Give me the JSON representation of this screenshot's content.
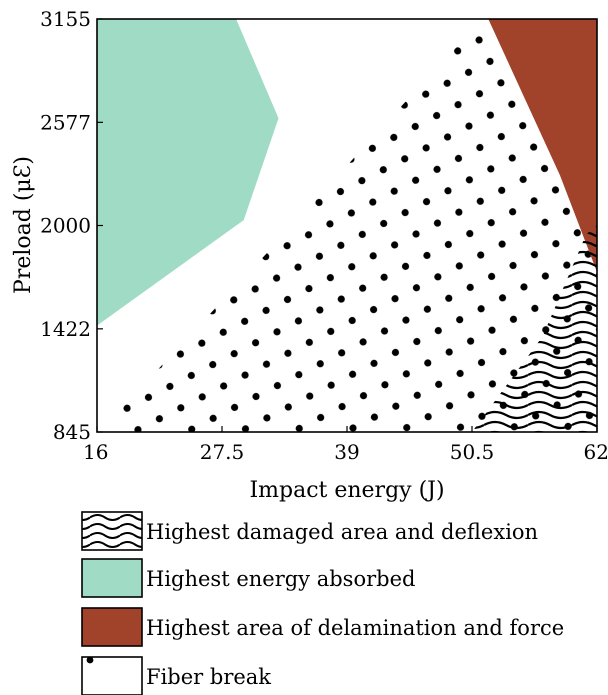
{
  "chart_data": {
    "type": "region-map",
    "xlabel": "Impact energy (J)",
    "ylabel": "Preload (μƐ)",
    "xlim": [
      16,
      62
    ],
    "ylim": [
      845,
      3155
    ],
    "xticks": [
      "16",
      "27.5",
      "39",
      "50.5",
      "62"
    ],
    "yticks": [
      "845",
      "1422",
      "2000",
      "2577",
      "3155"
    ],
    "xtick_values": [
      16,
      27.5,
      39,
      50.5,
      62
    ],
    "ytick_values": [
      845,
      1422,
      2000,
      2577,
      3155
    ],
    "grid": false,
    "legend_position": "bottom",
    "series": [
      {
        "name": "Highest damaged area and deflexion",
        "pattern": "wavy-lines",
        "color": "#000000",
        "region": [
          [
            50.5,
            845
          ],
          [
            57,
            1380
          ],
          [
            61,
            1950
          ],
          [
            62,
            2000
          ],
          [
            62,
            845
          ]
        ]
      },
      {
        "name": "Highest energy absorbed",
        "pattern": "solid",
        "color": "#9fdbc5",
        "region": [
          [
            16,
            3155
          ],
          [
            28.8,
            3155
          ],
          [
            32.7,
            2600
          ],
          [
            29.5,
            2030
          ],
          [
            16,
            1440
          ]
        ]
      },
      {
        "name": "Highest area of delamination and force",
        "pattern": "solid",
        "color": "#a1422a",
        "region": [
          [
            52,
            3155
          ],
          [
            62,
            3155
          ],
          [
            62,
            1740
          ],
          [
            58.6,
            2280
          ]
        ]
      },
      {
        "name": "Fiber break",
        "pattern": "dots",
        "color": "#000000",
        "region": [
          [
            18,
            960
          ],
          [
            34,
            2000
          ],
          [
            42.5,
            2570
          ],
          [
            51.5,
            3155
          ],
          [
            52,
            3155
          ],
          [
            58.6,
            2280
          ],
          [
            62,
            1740
          ],
          [
            62,
            845
          ],
          [
            17,
            845
          ]
        ]
      }
    ]
  }
}
